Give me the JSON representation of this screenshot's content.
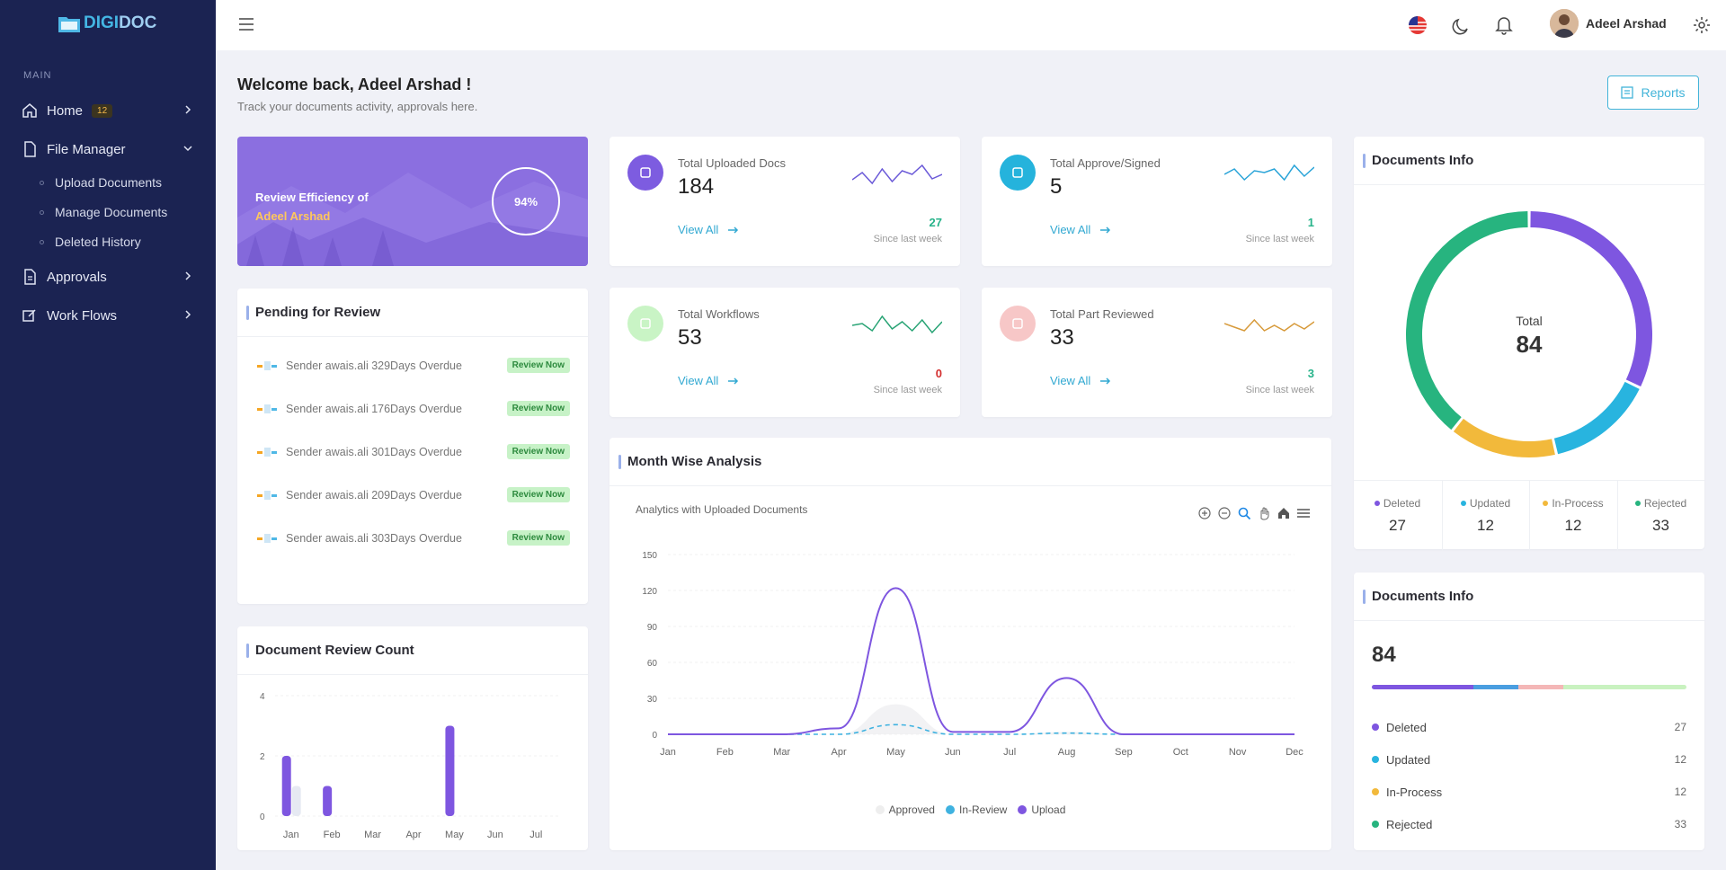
{
  "brand": {
    "a": "DIGI",
    "b": "DOC"
  },
  "sidebar": {
    "section": "MAIN",
    "home": {
      "label": "Home",
      "badge": "12"
    },
    "file_manager": {
      "label": "File Manager",
      "items": [
        "Upload Documents",
        "Manage Documents",
        "Deleted History"
      ]
    },
    "approvals": {
      "label": "Approvals"
    },
    "workflows": {
      "label": "Work Flows"
    }
  },
  "topbar": {
    "user": "Adeel Arshad"
  },
  "welcome": {
    "title": "Welcome back, Adeel Arshad !",
    "subtitle": "Track your documents activity, approvals here.",
    "reports": "Reports"
  },
  "efficiency": {
    "label": "Review Efficiency of",
    "name": "Adeel Arshad",
    "percent": "94%"
  },
  "stats": [
    {
      "label": "Total Uploaded Docs",
      "value": "184",
      "link": "View All",
      "delta": "27",
      "since": "Since last week",
      "color": "#7d5ce0",
      "delta_color": "#27b38a",
      "spark_color": "#6b5ad8",
      "spark": [
        14,
        22,
        10,
        26,
        12,
        24,
        20,
        30,
        15,
        20
      ]
    },
    {
      "label": "Total Approve/Signed",
      "value": "5",
      "link": "View All",
      "delta": "1",
      "since": "Since last week",
      "color": "#25b3dc",
      "delta_color": "#27b38a",
      "spark_color": "#2aa4d8",
      "spark": [
        20,
        26,
        14,
        24,
        22,
        26,
        14,
        30,
        18,
        28
      ]
    },
    {
      "label": "Total Workflows",
      "value": "53",
      "link": "View All",
      "delta": "0",
      "since": "Since last week",
      "color": "#c9f4c5",
      "delta_color": "#d32f2f",
      "spark_color": "#27a374",
      "spark": [
        20,
        22,
        14,
        30,
        16,
        24,
        14,
        26,
        12,
        24
      ]
    },
    {
      "label": "Total Part Reviewed",
      "value": "33",
      "link": "View All",
      "delta": "3",
      "since": "Since last week",
      "color": "#f7c7c7",
      "delta_color": "#27b38a",
      "spark_color": "#d79a3a",
      "spark": [
        22,
        18,
        14,
        26,
        14,
        20,
        14,
        22,
        16,
        24
      ]
    }
  ],
  "pending": {
    "title": "Pending for Review",
    "button": "Review Now",
    "items": [
      "Sender awais.ali 329Days Overdue",
      "Sender awais.ali 176Days Overdue",
      "Sender awais.ali 301Days Overdue",
      "Sender awais.ali 209Days Overdue",
      "Sender awais.ali 303Days Overdue"
    ]
  },
  "review_count": {
    "title": "Document Review Count",
    "chart_data": {
      "type": "bar",
      "categories": [
        "Jan",
        "Feb",
        "Mar",
        "Apr",
        "May",
        "Jun",
        "Jul"
      ],
      "series": [
        {
          "name": "Reviewed",
          "values": [
            2,
            1,
            0,
            0,
            3,
            0,
            0
          ],
          "color": "#7e56e0"
        },
        {
          "name": "Other",
          "values": [
            1,
            0,
            0,
            0,
            0,
            0,
            0
          ],
          "color": "#e6e9f2"
        }
      ],
      "yticks": [
        0,
        2,
        4
      ],
      "ylim": [
        0,
        4
      ]
    }
  },
  "month": {
    "title": "Month Wise Analysis",
    "subtitle": "Analytics with Uploaded Documents",
    "chart_data": {
      "type": "area",
      "categories": [
        "Jan",
        "Feb",
        "Mar",
        "Apr",
        "May",
        "Jun",
        "Jul",
        "Aug",
        "Sep",
        "Oct",
        "Nov",
        "Dec"
      ],
      "yticks": [
        0,
        30,
        60,
        90,
        120,
        150
      ],
      "ylim": [
        0,
        150
      ],
      "series": [
        {
          "name": "Approved",
          "values": [
            0,
            0,
            0,
            0,
            25,
            0,
            0,
            2,
            0,
            0,
            0,
            0
          ],
          "color": "#eeeeee"
        },
        {
          "name": "In-Review",
          "values": [
            0,
            0,
            0,
            0,
            8,
            0,
            0,
            1,
            0,
            0,
            0,
            0
          ],
          "color": "#3fb2e0"
        },
        {
          "name": "Upload",
          "values": [
            0,
            0,
            0,
            5,
            122,
            2,
            2,
            47,
            0,
            0,
            0,
            0
          ],
          "color": "#7e56e0"
        }
      ]
    }
  },
  "docinfo": {
    "title": "Documents Info",
    "total_label": "Total",
    "total": "84",
    "chart_data": {
      "type": "pie",
      "labels": [
        "Deleted",
        "Updated",
        "In-Process",
        "Rejected"
      ],
      "values": [
        27,
        12,
        12,
        33
      ],
      "colors": [
        "#7e56e0",
        "#28b4df",
        "#f2b93b",
        "#27b47f"
      ]
    },
    "stats": [
      {
        "label": "Deleted",
        "value": "27",
        "color": "#7e56e0"
      },
      {
        "label": "Updated",
        "value": "12",
        "color": "#28b4df"
      },
      {
        "label": "In-Process",
        "value": "12",
        "color": "#f2b93b"
      },
      {
        "label": "Rejected",
        "value": "33",
        "color": "#27b47f"
      }
    ]
  },
  "docinfo2": {
    "title": "Documents Info",
    "total": "84",
    "bar_colors": [
      "#7e56e0",
      "#4a9ee0",
      "#f4b7b7",
      "#c9f2c0"
    ],
    "items": [
      {
        "label": "Deleted",
        "value": "27",
        "color": "#7e56e0"
      },
      {
        "label": "Updated",
        "value": "12",
        "color": "#28b4df"
      },
      {
        "label": "In-Process",
        "value": "12",
        "color": "#f2b93b"
      },
      {
        "label": "Rejected",
        "value": "33",
        "color": "#27b47f"
      }
    ]
  }
}
